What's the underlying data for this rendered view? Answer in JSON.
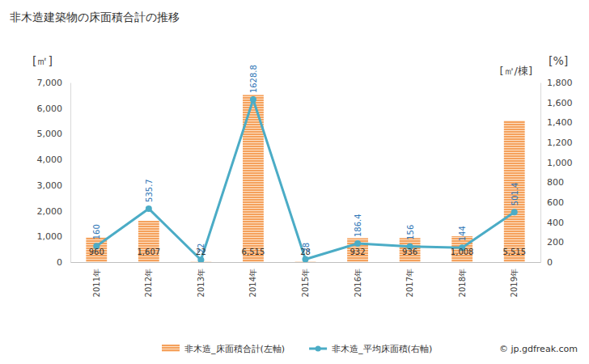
{
  "chart_data": {
    "type": "bar",
    "title": "非木造建築物の床面積合計の推移",
    "y_label": "[㎡]",
    "y2_label": "[㎡/棟]",
    "annotations": [
      "[%]",
      "© jp.gdfreak.com"
    ],
    "categories": [
      "2011年",
      "2012年",
      "2013年",
      "2014年",
      "2015年",
      "2016年",
      "2017年",
      "2018年",
      "2019年"
    ],
    "series": [
      {
        "name": "非木造_床面積合計(左軸)",
        "type": "bar",
        "color": "#f5a15c",
        "values": [
          960,
          1607,
          22,
          6515,
          28,
          932,
          936,
          1008,
          5515
        ],
        "value_labels": [
          "960",
          "1,607",
          "22",
          "6,515",
          "28",
          "932",
          "936",
          "1,008",
          "5,515"
        ]
      },
      {
        "name": "非木造_平均床面積(右軸)",
        "type": "line",
        "axis": "y2",
        "color": "#4bacc6",
        "marker": "circle",
        "values": [
          160,
          535.7,
          22,
          1628.8,
          28,
          186.4,
          156,
          144,
          501.4
        ]
      }
    ],
    "ylim": [
      0,
      7000
    ],
    "yticks": [
      0,
      {
        "value": 1000,
        "label": "1,000"
      },
      {
        "value": 2000,
        "label": "2,000"
      },
      {
        "value": 3000,
        "label": "3,000"
      },
      {
        "value": 4000,
        "label": "4,000"
      },
      {
        "value": 5000,
        "label": "5,000"
      },
      {
        "value": 6000,
        "label": "6,000"
      },
      {
        "value": 7000,
        "label": "7,000"
      }
    ],
    "y2lim": [
      0,
      1800
    ],
    "y2ticks": [
      0,
      200,
      400,
      600,
      800,
      {
        "value": 1000,
        "label": "1,000"
      },
      {
        "value": 1200,
        "label": "1,200"
      },
      {
        "value": 1400,
        "label": "1,400"
      },
      {
        "value": 1600,
        "label": "1,600"
      },
      {
        "value": 1800,
        "label": "1,800"
      }
    ],
    "grid": false,
    "data_labels": true,
    "legend": "bottom"
  }
}
